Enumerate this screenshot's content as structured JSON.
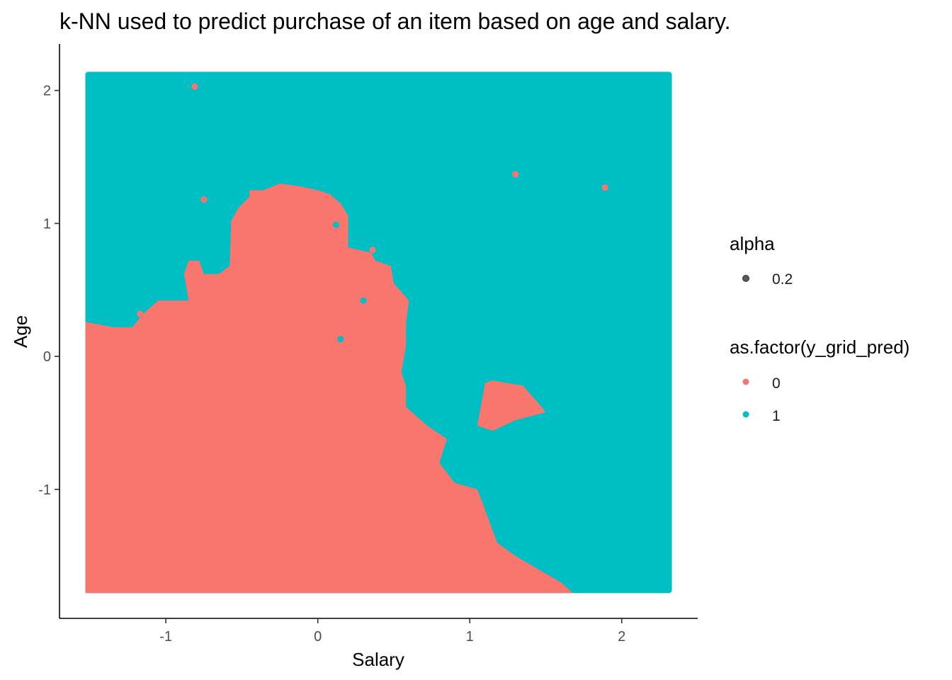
{
  "colors": {
    "class0": "#F8766D",
    "class1": "#00BFC4",
    "alpha_key": "#595959",
    "axis": "#000000"
  },
  "chart_data": {
    "type": "heatmap",
    "title": "k-NN used to predict purchase of an item based on age and salary.",
    "xlabel": "Salary",
    "ylabel": "Age",
    "xlim": [
      -1.7,
      2.5
    ],
    "ylim": [
      -1.97,
      2.35
    ],
    "x_ticks": [
      -1,
      0,
      1,
      2
    ],
    "y_ticks": [
      -1,
      0,
      1,
      2
    ],
    "x_tick_labels": [
      "-1",
      "0",
      "1",
      "2"
    ],
    "y_tick_labels": [
      "-1",
      "0",
      "1",
      "2"
    ],
    "grid": false,
    "legend_placement": "right",
    "grid_extent": {
      "x": [
        -1.53,
        2.33
      ],
      "y": [
        -1.78,
        2.14
      ]
    },
    "background_class": "1",
    "decision_region_class0": [
      [
        -1.53,
        -1.78
      ],
      [
        -1.53,
        0.26
      ],
      [
        -1.35,
        0.22
      ],
      [
        -1.22,
        0.22
      ],
      [
        -1.15,
        0.32
      ],
      [
        -1.05,
        0.42
      ],
      [
        -0.85,
        0.42
      ],
      [
        -0.88,
        0.62
      ],
      [
        -0.85,
        0.72
      ],
      [
        -0.78,
        0.72
      ],
      [
        -0.75,
        0.62
      ],
      [
        -0.65,
        0.62
      ],
      [
        -0.58,
        0.68
      ],
      [
        -0.57,
        1.02
      ],
      [
        -0.52,
        1.12
      ],
      [
        -0.45,
        1.2
      ],
      [
        -0.45,
        1.25
      ],
      [
        -0.36,
        1.25
      ],
      [
        -0.25,
        1.3
      ],
      [
        -0.12,
        1.28
      ],
      [
        0.0,
        1.25
      ],
      [
        0.08,
        1.22
      ],
      [
        0.15,
        1.15
      ],
      [
        0.2,
        1.06
      ],
      [
        0.2,
        0.82
      ],
      [
        0.35,
        0.78
      ],
      [
        0.38,
        0.72
      ],
      [
        0.48,
        0.68
      ],
      [
        0.5,
        0.55
      ],
      [
        0.6,
        0.42
      ],
      [
        0.58,
        0.25
      ],
      [
        0.58,
        0.08
      ],
      [
        0.55,
        -0.12
      ],
      [
        0.58,
        -0.22
      ],
      [
        0.58,
        -0.38
      ],
      [
        0.72,
        -0.52
      ],
      [
        0.85,
        -0.62
      ],
      [
        0.8,
        -0.8
      ],
      [
        0.9,
        -0.95
      ],
      [
        1.05,
        -1.0
      ],
      [
        1.1,
        -1.15
      ],
      [
        1.18,
        -1.4
      ],
      [
        1.3,
        -1.5
      ],
      [
        1.48,
        -1.62
      ],
      [
        1.6,
        -1.7
      ],
      [
        1.68,
        -1.78
      ]
    ],
    "decision_region_class0_island": [
      [
        1.05,
        -0.52
      ],
      [
        1.1,
        -0.2
      ],
      [
        1.15,
        -0.18
      ],
      [
        1.35,
        -0.22
      ],
      [
        1.45,
        -0.35
      ],
      [
        1.5,
        -0.42
      ],
      [
        1.3,
        -0.48
      ],
      [
        1.15,
        -0.56
      ]
    ],
    "series": [
      {
        "name": "0",
        "points": [
          [
            -0.81,
            2.03
          ],
          [
            -0.75,
            1.18
          ],
          [
            1.3,
            1.37
          ],
          [
            1.89,
            1.27
          ],
          [
            0.36,
            0.8
          ],
          [
            -1.17,
            0.32
          ]
        ]
      },
      {
        "name": "1",
        "points": [
          [
            0.12,
            0.99
          ],
          [
            0.3,
            0.42
          ],
          [
            0.15,
            0.13
          ]
        ]
      }
    ],
    "legend": {
      "alpha": {
        "title": "alpha",
        "items": [
          "0.2"
        ]
      },
      "fill": {
        "title": "as.factor(y_grid_pred)",
        "items": [
          "0",
          "1"
        ]
      }
    }
  }
}
